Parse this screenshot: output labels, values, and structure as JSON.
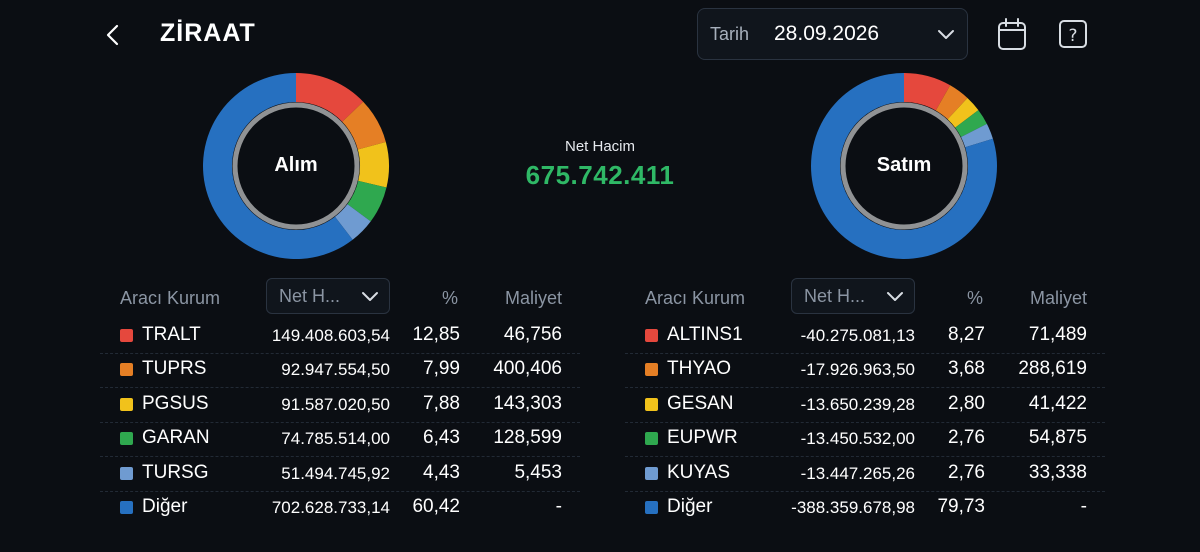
{
  "header": {
    "title": "ZİRAAT",
    "date_label": "Tarih",
    "date_value": "28.09.2026"
  },
  "center": {
    "net_label": "Net Hacim",
    "net_value": "675.742.411"
  },
  "buy": {
    "donut_label": "Alım",
    "col_broker": "Aracı Kurum",
    "col_sort": "Net H...",
    "col_pct": "%",
    "col_cost": "Maliyet",
    "rows": [
      {
        "symbol": "TRALT",
        "net": "149.408.603,54",
        "pct": "12,85",
        "cost": "46,756",
        "color": "#e5483d",
        "share": 12.85
      },
      {
        "symbol": "TUPRS",
        "net": "92.947.554,50",
        "pct": "7,99",
        "cost": "400,406",
        "color": "#e57f25",
        "share": 7.99
      },
      {
        "symbol": "PGSUS",
        "net": "91.587.020,50",
        "pct": "7,88",
        "cost": "143,303",
        "color": "#f1c21b",
        "share": 7.88
      },
      {
        "symbol": "GARAN",
        "net": "74.785.514,00",
        "pct": "6,43",
        "cost": "128,599",
        "color": "#2fa84f",
        "share": 6.43
      },
      {
        "symbol": "TURSG",
        "net": "51.494.745,92",
        "pct": "4,43",
        "cost": "5,453",
        "color": "#6f9bd1",
        "share": 4.43
      },
      {
        "symbol": "Diğer",
        "net": "702.628.733,14",
        "pct": "60,42",
        "cost": "-",
        "color": "#2670c0",
        "share": 60.42
      }
    ]
  },
  "sell": {
    "donut_label": "Satım",
    "col_broker": "Aracı Kurum",
    "col_sort": "Net H...",
    "col_pct": "%",
    "col_cost": "Maliyet",
    "rows": [
      {
        "symbol": "ALTINS1",
        "net": "-40.275.081,13",
        "pct": "8,27",
        "cost": "71,489",
        "color": "#e5483d",
        "share": 8.27
      },
      {
        "symbol": "THYAO",
        "net": "-17.926.963,50",
        "pct": "3,68",
        "cost": "288,619",
        "color": "#e57f25",
        "share": 3.68
      },
      {
        "symbol": "GESAN",
        "net": "-13.650.239,28",
        "pct": "2,80",
        "cost": "41,422",
        "color": "#f1c21b",
        "share": 2.8
      },
      {
        "symbol": "EUPWR",
        "net": "-13.450.532,00",
        "pct": "2,76",
        "cost": "54,875",
        "color": "#2fa84f",
        "share": 2.76
      },
      {
        "symbol": "KUYAS",
        "net": "-13.447.265,26",
        "pct": "2,76",
        "cost": "33,338",
        "color": "#6f9bd1",
        "share": 2.76
      },
      {
        "symbol": "Diğer",
        "net": "-388.359.678,98",
        "pct": "79,73",
        "cost": "-",
        "color": "#2670c0",
        "share": 79.73
      }
    ]
  }
}
